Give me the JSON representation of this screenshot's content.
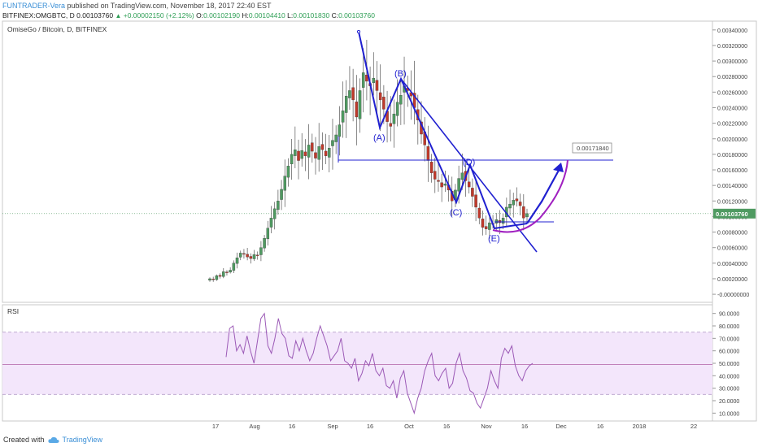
{
  "header": {
    "author": "FUNTRADER-Vera",
    "published_text": "published on TradingView.com, November 18, 2017 22:40 EST",
    "symbol": "BITFINEX:OMGBTC, D",
    "last": "0.00103760",
    "change": "+0.00002150 (+2.12%)",
    "o_label": "O:",
    "o": "0.00102190",
    "h_label": "H:",
    "h": "0.00104410",
    "l_label": "L:",
    "l": "0.00101830",
    "c_label": "C:",
    "c": "0.00103760"
  },
  "main_pane": {
    "instrument_label": "OmiseGo / Bitcoin, D, BITFINEX"
  },
  "rsi_pane": {
    "label": "RSI"
  },
  "footer": {
    "created_with": "Created with",
    "brand": "TradingView"
  },
  "colors": {
    "up": "#4f9a61",
    "down": "#c0392b",
    "drawing": "#2020d0",
    "arc": "#a020c0",
    "rsi_line": "#9b59b6",
    "rsi_band": "#f3e6fb"
  },
  "chart_data": [
    {
      "type": "candlestick",
      "title": "OmiseGo / Bitcoin, D, BITFINEX",
      "x_ticks": [
        "17",
        "Aug",
        "16",
        "Sep",
        "16",
        "Oct",
        "16",
        "Nov",
        "16",
        "Dec",
        "16",
        "2018",
        "22"
      ],
      "y_ticks": [
        "0.00340000",
        "0.00320000",
        "0.00300000",
        "0.00280000",
        "0.00260000",
        "0.00240000",
        "0.00220000",
        "0.00200000",
        "0.00180000",
        "0.00160000",
        "0.00140000",
        "0.00120000",
        "0.00100000",
        "0.00080000",
        "0.00060000",
        "0.00040000",
        "0.00020000",
        "-0.00000000"
      ],
      "ylim": [
        -2e-05,
        0.00344
      ],
      "close_series": [
        0.0002,
        0.00019,
        0.00024,
        0.00023,
        0.00029,
        0.00028,
        0.00031,
        0.0004,
        0.00047,
        0.00053,
        0.00052,
        0.00048,
        0.00046,
        0.00051,
        0.0005,
        0.0006,
        0.00072,
        0.00085,
        0.00098,
        0.0011,
        0.0012,
        0.00135,
        0.00152,
        0.00165,
        0.0018,
        0.00186,
        0.00172,
        0.00185,
        0.00178,
        0.00192,
        0.00184,
        0.00175,
        0.0019,
        0.00186,
        0.00178,
        0.00188,
        0.00198,
        0.00205,
        0.00218,
        0.00236,
        0.00255,
        0.00262,
        0.0025,
        0.00228,
        0.00262,
        0.00285,
        0.00274,
        0.00268,
        0.00278,
        0.00262,
        0.0025,
        0.00238,
        0.00222,
        0.00216,
        0.00232,
        0.00247,
        0.00256,
        0.00268,
        0.00262,
        0.00255,
        0.0024,
        0.00224,
        0.00206,
        0.00192,
        0.00172,
        0.00156,
        0.00148,
        0.00145,
        0.00138,
        0.00142,
        0.00134,
        0.0012,
        0.00134,
        0.00149,
        0.00156,
        0.00146,
        0.00138,
        0.00126,
        0.00112,
        0.00098,
        0.00086,
        0.00084,
        0.00092,
        0.0009,
        0.00096,
        0.00092,
        0.00098,
        0.00112,
        0.00116,
        0.00121,
        0.0012,
        0.00114,
        0.00098,
        0.0010376
      ],
      "current_price_label": "0.00103760",
      "annotations": [
        "(A)",
        "(B)",
        "(C)",
        "(D)",
        "(E)",
        "0.00171840"
      ]
    },
    {
      "type": "line",
      "title": "RSI",
      "y_ticks": [
        "90.0000",
        "80.0000",
        "70.0000",
        "60.0000",
        "50.0000",
        "40.0000",
        "30.0000",
        "20.0000",
        "10.0000"
      ],
      "ylim": [
        5,
        95
      ],
      "bands": [
        25,
        75
      ],
      "midline": 49,
      "values": [
        55,
        78,
        80,
        60,
        65,
        58,
        72,
        60,
        50,
        68,
        86,
        90,
        64,
        58,
        70,
        86,
        74,
        70,
        56,
        54,
        68,
        60,
        70,
        60,
        52,
        58,
        70,
        80,
        72,
        64,
        52,
        56,
        60,
        70,
        52,
        50,
        46,
        54,
        36,
        42,
        52,
        48,
        58,
        44,
        40,
        46,
        32,
        30,
        36,
        22,
        38,
        44,
        26,
        18,
        10,
        22,
        30,
        44,
        52,
        58,
        40,
        36,
        42,
        46,
        30,
        34,
        50,
        58,
        44,
        38,
        28,
        26,
        18,
        14,
        22,
        30,
        44,
        36,
        30,
        54,
        62,
        58,
        64,
        48,
        40,
        36,
        44,
        48,
        50
      ]
    }
  ]
}
